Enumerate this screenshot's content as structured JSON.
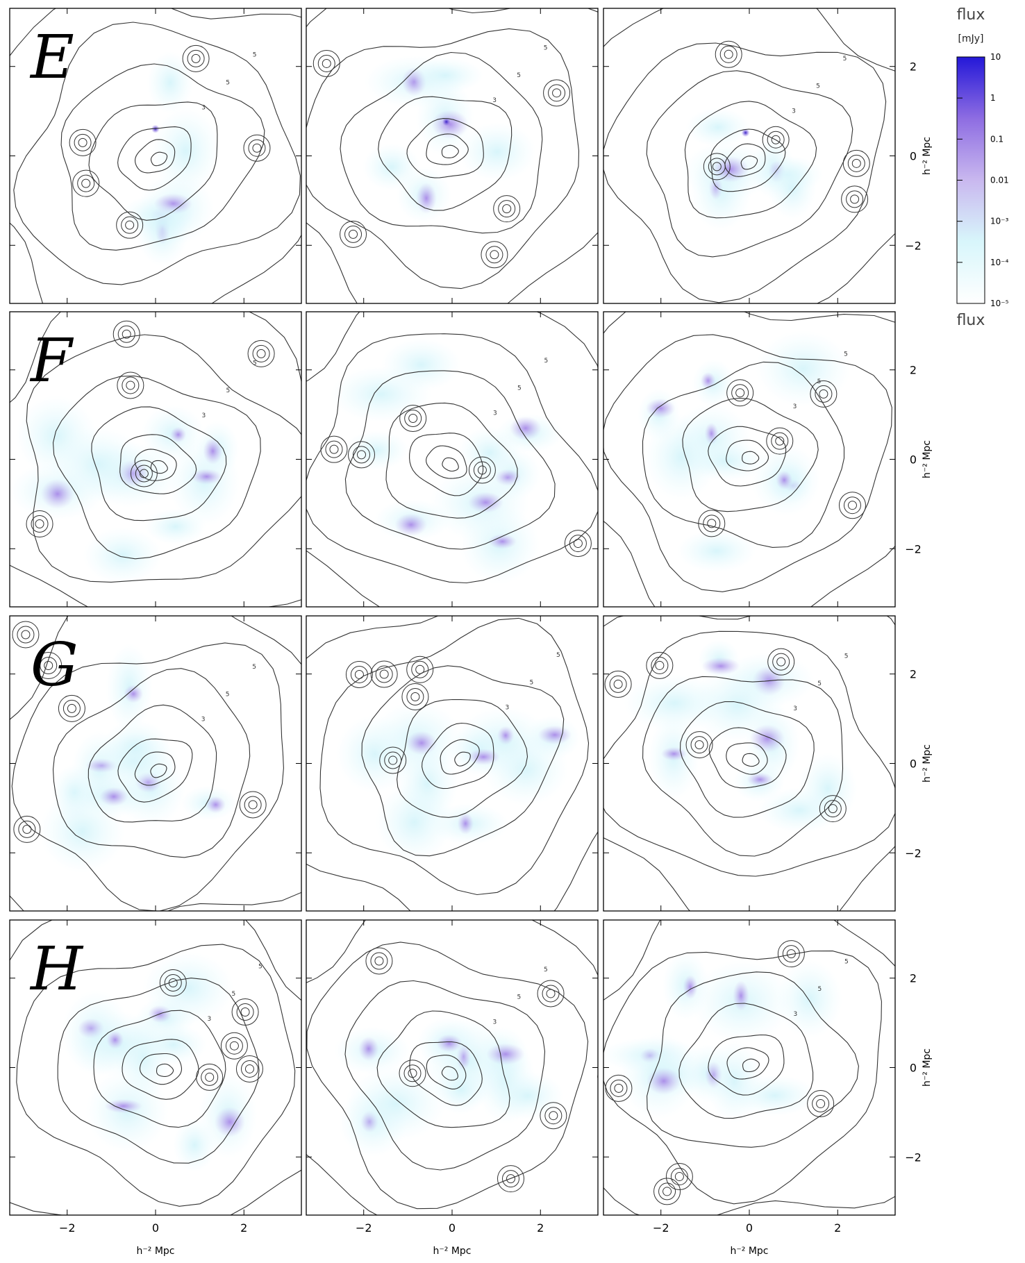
{
  "figure": {
    "row_labels": [
      "E",
      "F",
      "G",
      "H"
    ],
    "axis_unit_label": "h⁻² Mpc",
    "tick_labels": [
      "−2",
      "0",
      "2"
    ],
    "contour_level_labels": [
      "5",
      "3",
      "1"
    ]
  },
  "colorbar": {
    "title": "flux",
    "units": "[mJy]",
    "bottom_label": "flux",
    "tick_labels": [
      "10",
      "1",
      "0.1",
      "0.01",
      "10⁻³",
      "10⁻⁴",
      "10⁻⁵"
    ],
    "color_low": "#e8fbff",
    "color_mid": "#b28ae6",
    "color_high": "#2a20d8"
  },
  "chart_data": {
    "type": "heatmap",
    "description_of_axes": "each panel spans about -3.3 to 3.3 in both x and y",
    "xlim": [
      -3.3,
      3.3
    ],
    "ylim": [
      -3.3,
      3.3
    ],
    "x_ticks": [
      -2,
      0,
      2
    ],
    "y_ticks": [
      -2,
      0,
      2
    ],
    "xlabel": "h⁻² Mpc",
    "ylabel": "h⁻² Mpc",
    "colorbar_range_mJy": [
      1e-05,
      10
    ],
    "colorbar_scale": "log",
    "grid": false
  }
}
